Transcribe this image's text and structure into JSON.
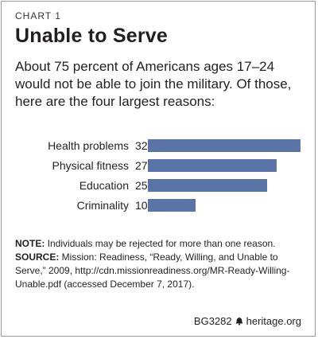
{
  "header": {
    "chart_label": "CHART 1",
    "title": "Unable to Serve",
    "subtitle": "About 75 percent of Americans ages 17–24 would not be able to join the military. Of those, here are the four largest reasons:"
  },
  "chart_data": {
    "type": "bar",
    "orientation": "horizontal",
    "categories": [
      "Health problems",
      "Physical fitness",
      "Education",
      "Criminality"
    ],
    "values": [
      32,
      27,
      25,
      10
    ],
    "value_labels": [
      "32%",
      "27%",
      "25%",
      "10%"
    ],
    "bar_color": "#5b74a8",
    "xlim": [
      0,
      32
    ]
  },
  "notes": {
    "note_label": "NOTE:",
    "note_text": " Individuals may be rejected for more than one reason.",
    "source_label": "SOURCE:",
    "source_text": " Mission: Readiness, “Ready, Willing, and Unable to Serve,” 2009, http://cdn.missionreadiness.org/MR-Ready-Willing-Unable.pdf (accessed December 7, 2017)."
  },
  "footer": {
    "code": "BG3282",
    "site": "heritage.org",
    "icon": "liberty-bell-icon"
  }
}
